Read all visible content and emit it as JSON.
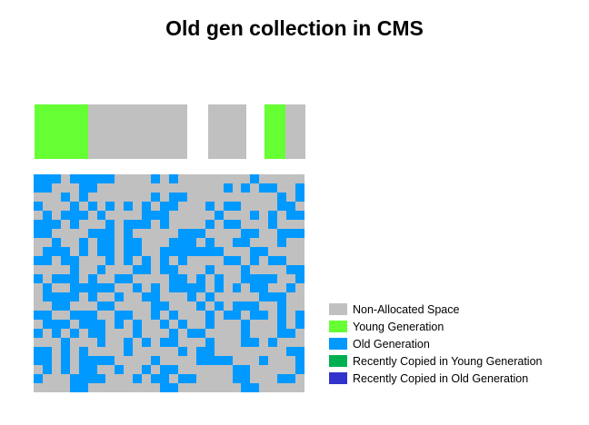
{
  "title": "Old gen collection in CMS",
  "colors": {
    "non_allocated": "#c0c0c0",
    "young": "#66ff33",
    "old": "#0099ff",
    "recent_young": "#00b050",
    "recent_old": "#3333cc"
  },
  "young_generation_row": [
    {
      "name": "eden-region",
      "segments": [
        {
          "type": "young",
          "fraction": 0.35
        },
        {
          "type": "non_allocated",
          "fraction": 0.65
        }
      ]
    },
    {
      "name": "survivor-space-1",
      "segments": [
        {
          "type": "non_allocated",
          "fraction": 1.0
        }
      ]
    },
    {
      "name": "survivor-space-2",
      "segments": [
        {
          "type": "young",
          "fraction": 0.52
        },
        {
          "type": "non_allocated",
          "fraction": 0.48
        }
      ]
    }
  ],
  "old_generation_grid": {
    "cols": 30,
    "rows": 24,
    "cells": [
      "OOONOOOOONNNNONONNNNNNNNONNNNN",
      "OONNNOONNNNNNNNNNNNNNONONOONNO",
      "NNNONONNNNNNNONOONNNNNNNNNNONO",
      "ONNNONONONONONOONNNONOONNNNOON",
      "NONOOONONNNNOOONNNNNONNNONONOO",
      "OOONONNNONOOONONNNNONOONNNONNN",
      "OONNNNOOONONNNNNOOONNNNOONNOOO",
      "NNONNONOONOONNNOOONONNOONNNONN",
      "NOOONONOONOONNOOOOOOONNNOONNNN",
      "OONOONNNONONONONONNNNOONONOONN",
      "NNNNONNONNNOONOONNNONNNONNNNOO",
      "ONOOONONNOONNNNOONONONNOOOONNO",
      "NONNOOOOONNONONOOOONONONOONNON",
      "NOOOONONNONNOONNNONONNNNNOOONN",
      "NNOONNNOONNNNOONNNONONOOONNONN",
      "OONNOOONNOONNONONNNONOONOONONO",
      "NOOONOOONONONNONONNONNNONNNONO",
      "ONONONOONNNONNNONOONNNNONNNOON",
      "NNNONNNONNONONOONNNONNNOONONNN",
      "OONONONNNNONNNNNONOONNNNNNNNOO",
      "OONONOOOONNNNONNNNOOOONNNONNNO",
      "NONONOONNONNONOONNNNNNOONNNNNO",
      "ONNNOOOONNNONOONOONNNNOONNNOON",
      "NNNNOONNNNNNNNOONNNNNNNOONNNNN"
    ]
  },
  "legend": [
    {
      "label": "Non-Allocated Space",
      "color": "#c0c0c0"
    },
    {
      "label": "Young Generation",
      "color": "#66ff33"
    },
    {
      "label": "Old Generation",
      "color": "#0099ff"
    },
    {
      "label": "Recently Copied in Young Generation",
      "color": "#00b050"
    },
    {
      "label": "Recently Copied in Old Generation",
      "color": "#3333cc"
    }
  ]
}
